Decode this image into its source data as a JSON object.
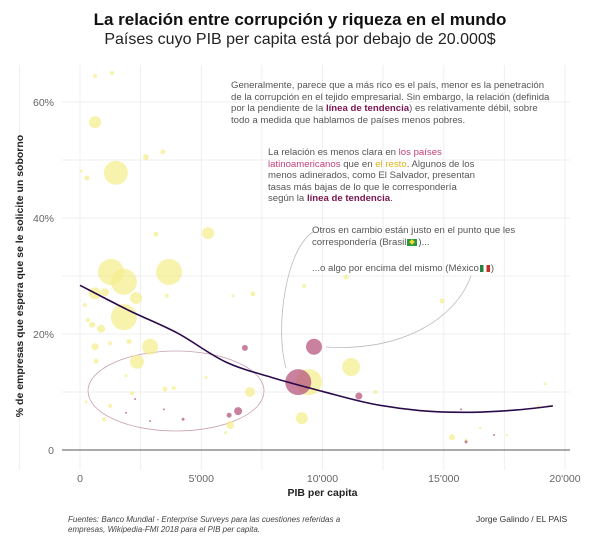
{
  "title": "La relación entre corrupción y riqueza en el mundo",
  "subtitle": "Países cuyo PIB per capita está por debajo de 20.000$",
  "annotations": {
    "a1": {
      "t1": "Generalmente, parece que a más rico es el país, menor es la penetración de la corrupción en el tejido empresarial. Sin embargo, la relación (definida por la pendiente de la ",
      "hl": "línea de tendencia",
      "t2": ") es relativamente débil, sobre todo a medida que hablamos de países menos pobres."
    },
    "a2": {
      "t1": "La relación es menos clara en ",
      "hl_pink": "los países latinoamericanos",
      "t2": " que en ",
      "hl_yellow": "el resto",
      "t3": ". Algunos de los menos adinerados, como El Salvador, presentan tasas más bajas de lo que le correspondería según la ",
      "hl": "línea de tendencia",
      "t4": "."
    },
    "a3": {
      "t1": "Otros en cambio están justo en el punto que les correspondería (Brasil",
      "t2": ")..."
    },
    "a4": {
      "t1": "...o algo por encima del mismo (México",
      "t2": ")"
    }
  },
  "source": "Fuentes: Banco Mundial - Enterprise Surveys para las cuestiones referidas a empresas, Wikipedia-FMI 2018 para el PIB per capita.",
  "credit": "Jorge Galindo / EL PAIS",
  "colors": {
    "rest": "#f3ee8a",
    "latam": "#b8577f",
    "trend": "#2a0a4a",
    "highlight": "#7a1450"
  },
  "chart_data": {
    "type": "scatter",
    "title": "La relación entre corrupción y riqueza en el mundo",
    "xlabel": "PIB per capita",
    "ylabel": "% de empresas que espera que se le solicite un soborno",
    "xlim": [
      -300,
      20300
    ],
    "ylim": [
      -1,
      67
    ],
    "xticks": [
      0,
      5000,
      10000,
      15000,
      20000
    ],
    "xtick_labels": [
      "0",
      "5'000",
      "10'000",
      "15'000",
      "20'000"
    ],
    "yticks": [
      0,
      20,
      40,
      60
    ],
    "ytick_labels": [
      "0",
      "20%",
      "40%",
      "60%"
    ],
    "grid": true,
    "series": [
      {
        "group": "rest",
        "points": [
          [
            620,
            64.5,
            2
          ],
          [
            1320,
            65,
            2
          ],
          [
            620,
            56.5,
            6
          ],
          [
            1480,
            47.8,
            12
          ],
          [
            2720,
            50.5,
            3
          ],
          [
            3420,
            51.4,
            2.5
          ],
          [
            40,
            48.1,
            1.5
          ],
          [
            290,
            46.9,
            2.5
          ],
          [
            3130,
            37.2,
            2.5
          ],
          [
            5280,
            37.4,
            6
          ],
          [
            1280,
            30.7,
            13
          ],
          [
            1810,
            29,
            13
          ],
          [
            3670,
            30.7,
            13
          ],
          [
            1030,
            27.2,
            4
          ],
          [
            620,
            27,
            6
          ],
          [
            2310,
            26.2,
            6
          ],
          [
            3580,
            26.6,
            2
          ],
          [
            1810,
            22.9,
            13
          ],
          [
            200,
            25,
            2
          ],
          [
            330,
            22.4,
            2
          ],
          [
            500,
            21.6,
            3
          ],
          [
            870,
            20.9,
            4
          ],
          [
            2020,
            18.7,
            2.5
          ],
          [
            620,
            17.8,
            3.5
          ],
          [
            2890,
            17.8,
            8
          ],
          [
            2350,
            15.2,
            7
          ],
          [
            660,
            15.3,
            2.5
          ],
          [
            1240,
            18.4,
            2
          ],
          [
            7130,
            26.9,
            2.5
          ],
          [
            6310,
            26.6,
            1.5
          ],
          [
            9240,
            28.3,
            2
          ],
          [
            10970,
            29.8,
            2.5
          ],
          [
            14930,
            25.7,
            2.5
          ],
          [
            9440,
            11.7,
            13
          ],
          [
            11180,
            14.3,
            9
          ],
          [
            9150,
            5.5,
            6
          ],
          [
            7010,
            10,
            5
          ],
          [
            6190,
            4.3,
            4
          ],
          [
            12190,
            10,
            2
          ],
          [
            3500,
            10.5,
            2.5
          ],
          [
            1240,
            7.6,
            2
          ],
          [
            990,
            5.3,
            2
          ],
          [
            2150,
            9.8,
            2
          ],
          [
            3870,
            10.7,
            2
          ],
          [
            15340,
            2.2,
            3
          ],
          [
            15920,
            1.7,
            1.5
          ],
          [
            19170,
            11.4,
            1.5
          ],
          [
            18900,
            7.5,
            1.5
          ],
          [
            250,
            8.3,
            1.5
          ],
          [
            1900,
            12.8,
            1.5
          ],
          [
            5200,
            12.5,
            1.5
          ],
          [
            6000,
            3,
            1.5
          ],
          [
            16500,
            3.8,
            1.2
          ],
          [
            17600,
            2.6,
            1.2
          ]
        ]
      },
      {
        "group": "latam",
        "points": [
          [
            9000,
            11.7,
            13
          ],
          [
            9650,
            17.8,
            8
          ],
          [
            6800,
            17.6,
            3
          ],
          [
            6520,
            6.7,
            4
          ],
          [
            6150,
            6,
            2.5
          ],
          [
            11500,
            9.3,
            3.5
          ],
          [
            4250,
            5.3,
            1.5
          ],
          [
            3460,
            7,
            1
          ],
          [
            2270,
            8.8,
            1
          ],
          [
            1900,
            6.4,
            1
          ],
          [
            2890,
            5,
            1
          ],
          [
            15920,
            1.4,
            1.5
          ],
          [
            17070,
            2.6,
            1
          ],
          [
            15710,
            7,
            1
          ]
        ]
      }
    ],
    "trend_line": [
      [
        0,
        28.4
      ],
      [
        2000,
        24.1
      ],
      [
        4000,
        20.2
      ],
      [
        6000,
        15.2
      ],
      [
        8000,
        12.4
      ],
      [
        10000,
        10.1
      ],
      [
        12000,
        8
      ],
      [
        14000,
        6.8
      ],
      [
        16000,
        6.5
      ],
      [
        18000,
        6.9
      ],
      [
        19500,
        7.6
      ]
    ]
  }
}
